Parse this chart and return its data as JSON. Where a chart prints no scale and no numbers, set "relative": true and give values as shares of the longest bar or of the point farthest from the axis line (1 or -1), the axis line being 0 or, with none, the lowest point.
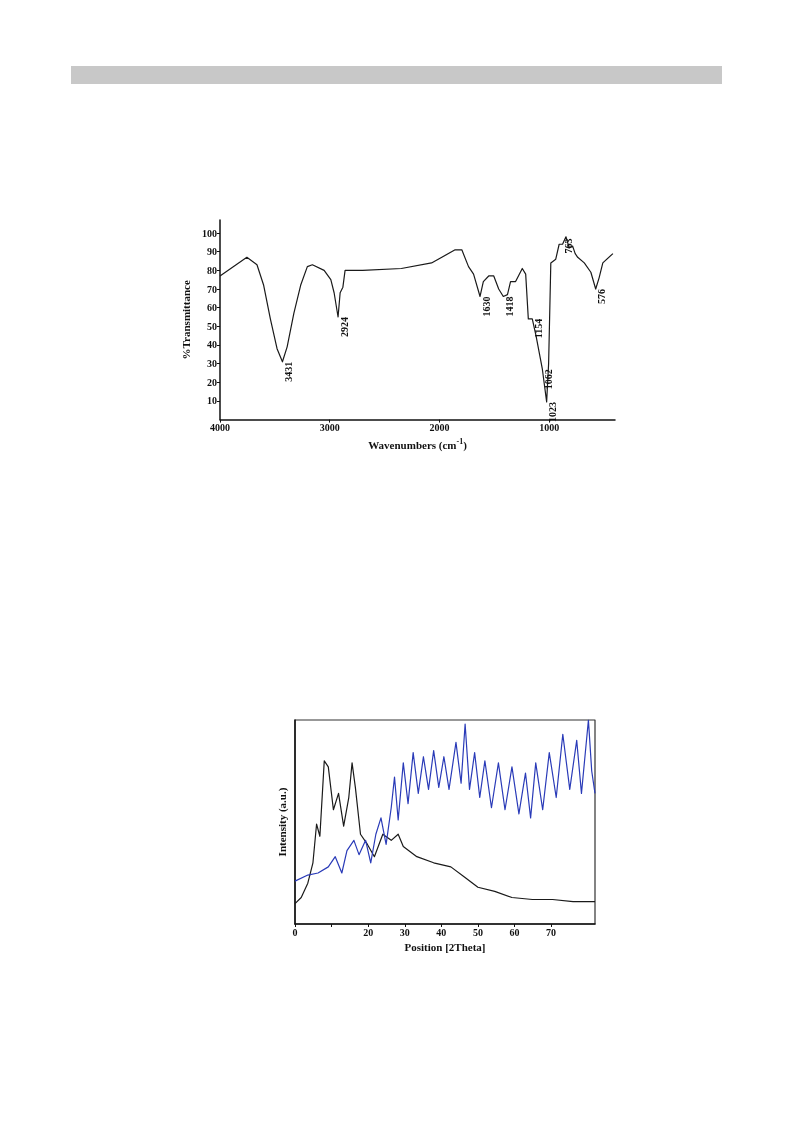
{
  "chart_data": [
    {
      "type": "line",
      "xlabel": "Wavenumbers (cm$^{-1}$)",
      "ylabel": "%Transmittance",
      "xlim": [
        4000,
        400
      ],
      "xticks": [
        4000,
        3000,
        2000,
        1000
      ],
      "ylim": [
        0,
        107
      ],
      "yticks": [
        10,
        20,
        30,
        40,
        50,
        60,
        70,
        80,
        90,
        100
      ],
      "grid": false,
      "marker": "none",
      "line_style": "solid",
      "series": [
        {
          "color": "#1a1a1a",
          "x": [
            4000,
            3755,
            3663,
            3602,
            3541,
            3480,
            3431,
            3388,
            3327,
            3265,
            3204,
            3158,
            3051,
            2990,
            2960,
            2924,
            2905,
            2880,
            2860,
            2700,
            2347,
            2072,
            1857,
            1796,
            1735,
            1689,
            1630,
            1600,
            1551,
            1505,
            1460,
            1418,
            1380,
            1352,
            1306,
            1245,
            1214,
            1190,
            1154,
            1120,
            1062,
            1023,
            1005,
            985,
            940,
            909,
            878,
            847,
            817,
            786,
            763,
            740,
            680,
            620,
            576,
            545,
            511,
            419
          ],
          "values": [
            77,
            87,
            83,
            72,
            54,
            38,
            31,
            39,
            57,
            72,
            82,
            83,
            80,
            75,
            68,
            55,
            68,
            71,
            80,
            80,
            81,
            84,
            91,
            91,
            82,
            78,
            66,
            74,
            77,
            77,
            70,
            66,
            67,
            74,
            74,
            81,
            78,
            54,
            54,
            45,
            27,
            9.5,
            30,
            84,
            86,
            94,
            94,
            98,
            92,
            93,
            89,
            87,
            84,
            79,
            70,
            76,
            84,
            89
          ]
        }
      ],
      "annotations": [
        {
          "text": "3431",
          "x": 3431,
          "y": 31
        },
        {
          "text": "2924",
          "x": 2924,
          "y": 55
        },
        {
          "text": "1630",
          "x": 1630,
          "y": 66
        },
        {
          "text": "1418",
          "x": 1418,
          "y": 66
        },
        {
          "text": "1154",
          "x": 1154,
          "y": 54
        },
        {
          "text": "1062",
          "x": 1062,
          "y": 27
        },
        {
          "text": "1023",
          "x": 1023,
          "y": 9.5
        },
        {
          "text": "763",
          "x": 763,
          "y": 89
        },
        {
          "text": "576",
          "x": 576,
          "y": 70
        }
      ]
    },
    {
      "type": "line",
      "xlabel": "Position [2Theta]",
      "ylabel": "Intensity (a.u.)",
      "relative": true,
      "xlim": [
        0,
        82
      ],
      "xticks": [
        0,
        {
          "value": 10,
          "label": null
        },
        20,
        30,
        40,
        50,
        60,
        70
      ],
      "tick_labels": "x",
      "grid": false,
      "marker": "none",
      "line_style": "solid",
      "series": [
        {
          "color": "#1a1a1a",
          "x": [
            0,
            1.7,
            3.5,
            4.9,
            5.9,
            6.8,
            8.0,
            9.1,
            10.5,
            11.9,
            13.3,
            14.7,
            15.6,
            16.5,
            17.9,
            19.8,
            21.7,
            24,
            26.3,
            28.2,
            29.6,
            33.3,
            37.9,
            42.6,
            46.3,
            50,
            54.6,
            59.3,
            64.9,
            70.4,
            76,
            82
          ],
          "values": [
            0.1,
            0.13,
            0.2,
            0.3,
            0.49,
            0.43,
            0.8,
            0.77,
            0.56,
            0.64,
            0.48,
            0.62,
            0.79,
            0.67,
            0.44,
            0.39,
            0.33,
            0.44,
            0.41,
            0.44,
            0.38,
            0.33,
            0.3,
            0.28,
            0.23,
            0.18,
            0.16,
            0.13,
            0.12,
            0.12,
            0.11,
            0.11
          ]
        },
        {
          "color": "#2a3bb8",
          "x": [
            0,
            3.5,
            6.3,
            9.1,
            11,
            12.8,
            14.2,
            16.1,
            17.5,
            19.3,
            20.7,
            22.1,
            23.5,
            24.9,
            26.3,
            27.2,
            28.2,
            29.6,
            30.9,
            32.3,
            33.7,
            35.1,
            36.5,
            37.9,
            39.3,
            40.7,
            42.1,
            44,
            45.4,
            46.5,
            47.7,
            49.1,
            50.5,
            51.9,
            53.7,
            55.6,
            57.4,
            59.3,
            61.2,
            63,
            64.4,
            65.8,
            67.7,
            69.5,
            71.4,
            73.2,
            75.1,
            77,
            78.3,
            80.2,
            81.1,
            82
          ],
          "values": [
            0.21,
            0.24,
            0.25,
            0.28,
            0.33,
            0.25,
            0.36,
            0.41,
            0.34,
            0.41,
            0.3,
            0.44,
            0.52,
            0.39,
            0.57,
            0.72,
            0.51,
            0.79,
            0.59,
            0.84,
            0.64,
            0.82,
            0.66,
            0.85,
            0.67,
            0.82,
            0.66,
            0.89,
            0.69,
            0.98,
            0.66,
            0.84,
            0.62,
            0.8,
            0.57,
            0.79,
            0.56,
            0.77,
            0.54,
            0.74,
            0.52,
            0.79,
            0.56,
            0.84,
            0.62,
            0.93,
            0.66,
            0.9,
            0.64,
            1,
            0.75,
            0.64
          ]
        }
      ]
    }
  ]
}
